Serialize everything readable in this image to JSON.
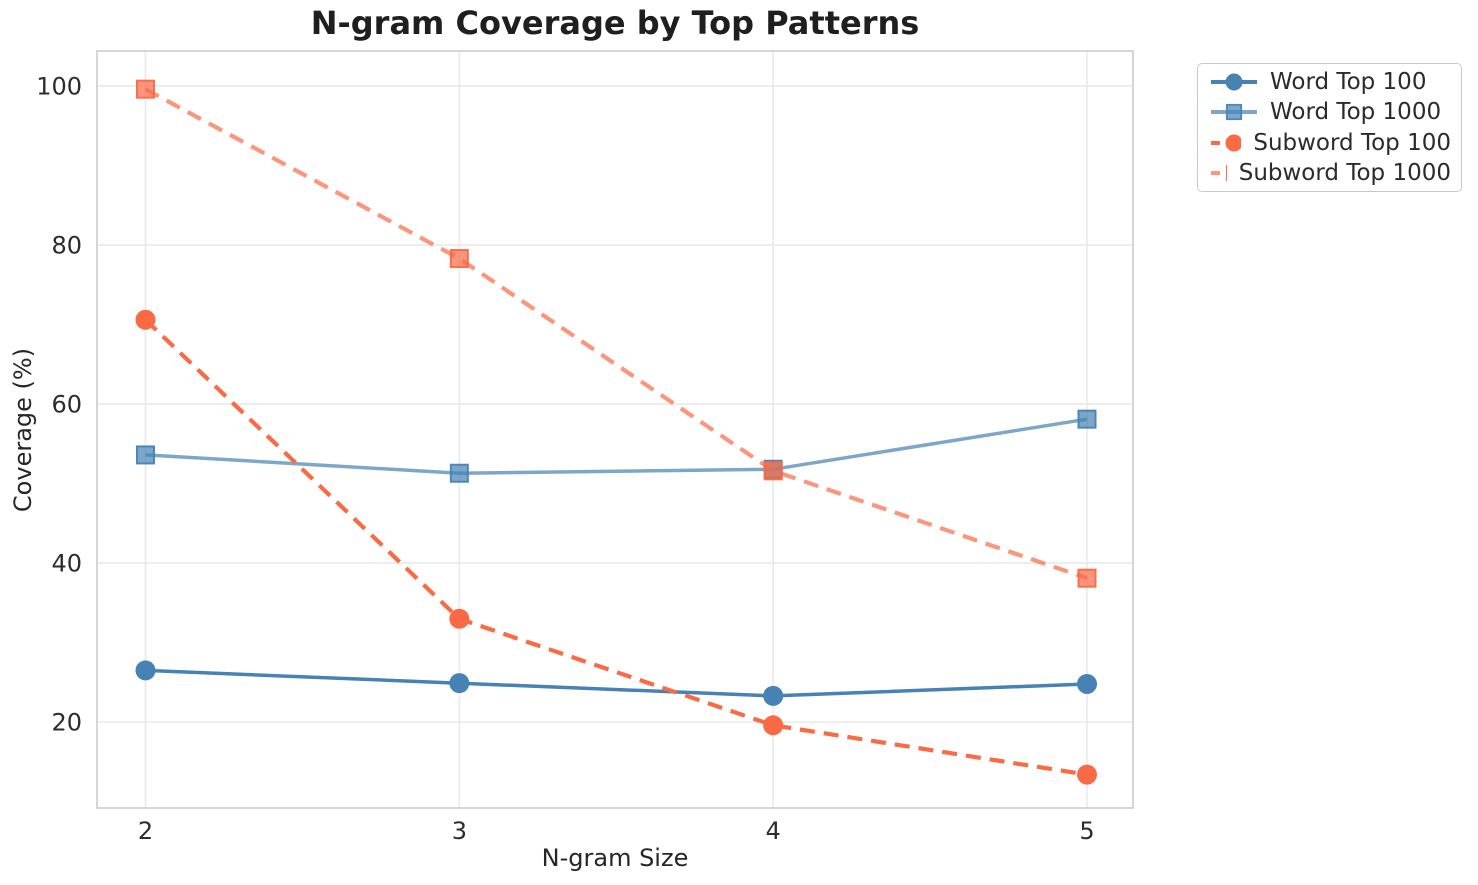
{
  "chart_data": {
    "type": "line",
    "title": "N-gram Coverage by Top Patterns",
    "xlabel": "N-gram Size",
    "ylabel": "Coverage (%)",
    "x": [
      2,
      3,
      4,
      5
    ],
    "xticks": [
      2,
      3,
      4,
      5
    ],
    "yticks": [
      20,
      40,
      60,
      80,
      100
    ],
    "ylim": [
      9.2,
      104.4
    ],
    "grid": true,
    "legend_position": "outside-right-top",
    "series": [
      {
        "name": "Word Top 100",
        "values": [
          26.5,
          24.9,
          23.3,
          24.8
        ],
        "color": "#4682B4",
        "opacity": 1.0,
        "marker": "circle",
        "dash": "solid"
      },
      {
        "name": "Word Top 1000",
        "values": [
          53.6,
          51.3,
          51.8,
          58.1
        ],
        "color": "#4682B4",
        "opacity": 0.7,
        "marker": "square",
        "dash": "solid"
      },
      {
        "name": "Subword Top 100",
        "values": [
          70.6,
          33.0,
          19.6,
          13.4
        ],
        "color": "#FA6A45",
        "opacity": 1.0,
        "marker": "circle",
        "dash": "dashed"
      },
      {
        "name": "Subword Top 1000",
        "values": [
          99.6,
          78.3,
          51.6,
          38.1
        ],
        "color": "#FA6A45",
        "opacity": 0.7,
        "marker": "square",
        "dash": "dashed"
      }
    ]
  }
}
